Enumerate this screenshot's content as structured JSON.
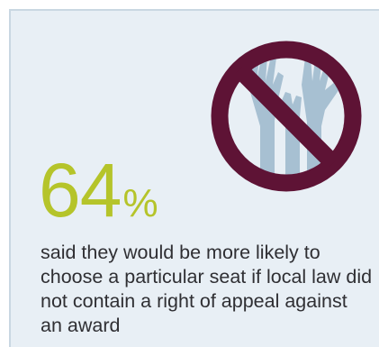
{
  "colors": {
    "background": "#e8eff5",
    "border": "#c9d7e2",
    "accent": "#b5c42a",
    "prohibition": "#5e1335",
    "hands": "#a7c0d2",
    "text": "#2f2f33"
  },
  "illustration": {
    "icon": "no-raised-hands-icon"
  },
  "stat": {
    "value": "64",
    "unit": "%"
  },
  "caption": "said they would be more likely to choose a particular seat if local law did not contain a right of appeal against an award"
}
